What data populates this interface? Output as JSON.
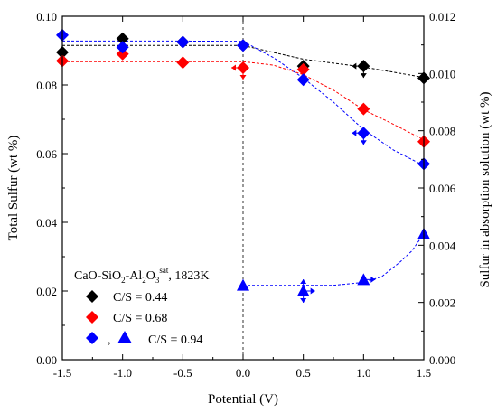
{
  "chart_data": {
    "type": "scatter",
    "x": [
      -1.5,
      -1.0,
      -0.5,
      0.0,
      0.5,
      1.0,
      1.5
    ],
    "xlabel": "Potential (V)",
    "ylabel": "Total Sulfur (wt %)",
    "y2label": "Sulfur in absorption solution (wt %)",
    "xlim": [
      -1.5,
      1.5
    ],
    "ylim": [
      0.0,
      0.1
    ],
    "y2lim": [
      0.0,
      0.012
    ],
    "x_ticks": [
      "-1.5",
      "-1.0",
      "-0.5",
      "0.0",
      "0.5",
      "1.0",
      "1.5"
    ],
    "y_ticks": [
      "0.00",
      "0.02",
      "0.04",
      "0.06",
      "0.08",
      "0.10"
    ],
    "y2_ticks": [
      "0.000",
      "0.002",
      "0.004",
      "0.006",
      "0.008",
      "0.010",
      "0.012"
    ],
    "grid": false,
    "vertical_reference_line_x": 0.0,
    "legend": {
      "placement": "bottom-left",
      "title_parts": {
        "a": "CaO-SiO",
        "b": "2",
        "c": "-Al",
        "d": "2",
        "e": "O",
        "f": "3",
        "g": "sat",
        "h": ", 1823K"
      },
      "entries": [
        "C/S = 0.44",
        "C/S = 0.68",
        "C/S = 0.94"
      ],
      "comma": ","
    },
    "series": [
      {
        "name": "C/S = 0.44",
        "axis": "left",
        "marker": "diamond",
        "color": "#000000",
        "values": [
          0.0895,
          0.0935,
          0.0925,
          0.0915,
          0.0855,
          0.0855,
          0.082
        ]
      },
      {
        "name": "C/S = 0.68",
        "axis": "left",
        "marker": "diamond",
        "color": "#ff0000",
        "values": [
          0.087,
          0.089,
          0.0865,
          0.085,
          0.0845,
          0.073,
          0.0635
        ]
      },
      {
        "name": "C/S = 0.94",
        "axis": "left",
        "marker": "diamond",
        "color": "#0000ff",
        "values": [
          0.0945,
          0.091,
          0.0925,
          0.0915,
          0.0815,
          0.066,
          0.057
        ]
      },
      {
        "name": "C/S = 0.94",
        "axis": "right",
        "marker": "triangle",
        "color": "#0000ff",
        "x": [
          0.0,
          0.5,
          1.0,
          1.5
        ],
        "values": [
          0.0026,
          0.0024,
          0.0028,
          0.0044
        ]
      }
    ],
    "fit_lines": [
      {
        "color": "#000000",
        "x": [
          -1.5,
          -1.0,
          -0.5,
          0.0,
          0.5,
          1.0,
          1.5
        ],
        "y": [
          0.0915,
          0.0915,
          0.0915,
          0.0915,
          0.0875,
          0.0852,
          0.0822
        ]
      },
      {
        "color": "#ff0000",
        "x": [
          -1.5,
          -1.0,
          -0.5,
          0.0,
          0.25,
          0.5,
          0.75,
          1.0,
          1.25,
          1.5
        ],
        "y": [
          0.0868,
          0.0868,
          0.0868,
          0.0868,
          0.0858,
          0.083,
          0.0785,
          0.0728,
          0.0685,
          0.064
        ]
      },
      {
        "color": "#0000ff",
        "x": [
          -1.5,
          -1.0,
          -0.5,
          0.0,
          0.25,
          0.5,
          0.75,
          1.0,
          1.25,
          1.5
        ],
        "y": [
          0.0928,
          0.0928,
          0.0928,
          0.0927,
          0.088,
          0.082,
          0.075,
          0.067,
          0.061,
          0.0565
        ]
      },
      {
        "color": "#0000ff",
        "axis": "right",
        "x": [
          0.0,
          0.25,
          0.5,
          0.75,
          1.0,
          1.15,
          1.3,
          1.4,
          1.5
        ],
        "y": [
          0.0026,
          0.0026,
          0.0026,
          0.0026,
          0.0027,
          0.0029,
          0.0034,
          0.0038,
          0.0044
        ]
      }
    ],
    "annotation_arrows": [
      {
        "color": "#000000",
        "axis": "left",
        "x": 1.0,
        "y": 0.0855,
        "directions": [
          "left",
          "down"
        ]
      },
      {
        "color": "#ff0000",
        "axis": "left",
        "x": 0.0,
        "y": 0.085,
        "directions": [
          "left",
          "down"
        ]
      },
      {
        "color": "#0000ff",
        "axis": "left",
        "x": 1.0,
        "y": 0.066,
        "directions": [
          "left",
          "down"
        ]
      },
      {
        "color": "#0000ff",
        "axis": "right",
        "x": 0.5,
        "y": 0.0024,
        "directions": [
          "right",
          "up",
          "down"
        ]
      },
      {
        "color": "#0000ff",
        "axis": "right",
        "x": 1.0,
        "y": 0.0028,
        "directions": [
          "right"
        ]
      }
    ]
  }
}
